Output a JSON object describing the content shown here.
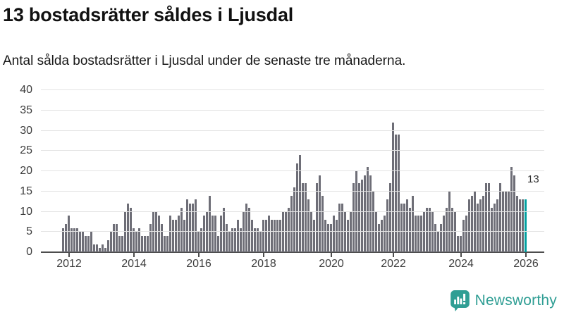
{
  "header": {
    "title": "13 bostadsrätter såldes i Ljusdal",
    "subtitle": "Antal sålda bostadsrätter i Ljusdal under de senaste tre månaderna."
  },
  "annotation": {
    "label": "13"
  },
  "logo": {
    "text": "Newsworthy"
  },
  "colors": {
    "bar": "#6e6e77",
    "highlight": "#00a0a0",
    "gridline": "#e3e3e3",
    "axis": "#4d4d4d",
    "text": "#3d3d3d",
    "logo_teal": "#2f9e94"
  },
  "chart_data": {
    "type": "bar",
    "title": "13 bostadsrätter såldes i Ljusdal",
    "subtitle": "Antal sålda bostadsrätter i Ljusdal under de senaste tre månaderna.",
    "ylabel": "",
    "xlabel": "",
    "ylim": [
      0,
      40
    ],
    "y_ticks": [
      0,
      5,
      10,
      15,
      20,
      25,
      30,
      35,
      40
    ],
    "grid": "horizontal",
    "legend": "none",
    "x_tick_labels": [
      "2012",
      "2014",
      "2016",
      "2018",
      "2020",
      "2022",
      "2024",
      "2026"
    ],
    "x_tick_bar_indices": [
      2,
      25,
      48,
      71,
      95,
      117,
      141,
      164
    ],
    "series_note": "monthly bars, rolling 3-month sales count, late 2011 through early 2026",
    "values": [
      6,
      7,
      9,
      6,
      6,
      6,
      5,
      5,
      4,
      4,
      5,
      2,
      2,
      1,
      2,
      1,
      3,
      5,
      7,
      7,
      4,
      4,
      10,
      12,
      11,
      6,
      5,
      6,
      4,
      4,
      4,
      7,
      10,
      10,
      9,
      7,
      4,
      4,
      9,
      8,
      8,
      9,
      11,
      8,
      13,
      12,
      12,
      13,
      5,
      6,
      9,
      10,
      14,
      9,
      9,
      4,
      9,
      11,
      7,
      5,
      6,
      6,
      8,
      6,
      10,
      12,
      11,
      8,
      6,
      6,
      5,
      8,
      8,
      9,
      8,
      8,
      8,
      8,
      10,
      10,
      11,
      14,
      16,
      22,
      24,
      17,
      17,
      13,
      10,
      8,
      17,
      19,
      14,
      8,
      7,
      7,
      9,
      8,
      12,
      12,
      10,
      8,
      10,
      17,
      20,
      17,
      18,
      19,
      21,
      19,
      15,
      10,
      7,
      8,
      9,
      13,
      17,
      32,
      29,
      29,
      12,
      12,
      13,
      11,
      14,
      9,
      9,
      9,
      10,
      11,
      11,
      10,
      7,
      5,
      7,
      9,
      11,
      15,
      11,
      10,
      4,
      4,
      8,
      9,
      13,
      14,
      15,
      12,
      13,
      14,
      17,
      17,
      11,
      12,
      13,
      17,
      15,
      15,
      15,
      21,
      19,
      14,
      13,
      13,
      13
    ],
    "highlight_index": 164,
    "highlight_value": 13
  }
}
